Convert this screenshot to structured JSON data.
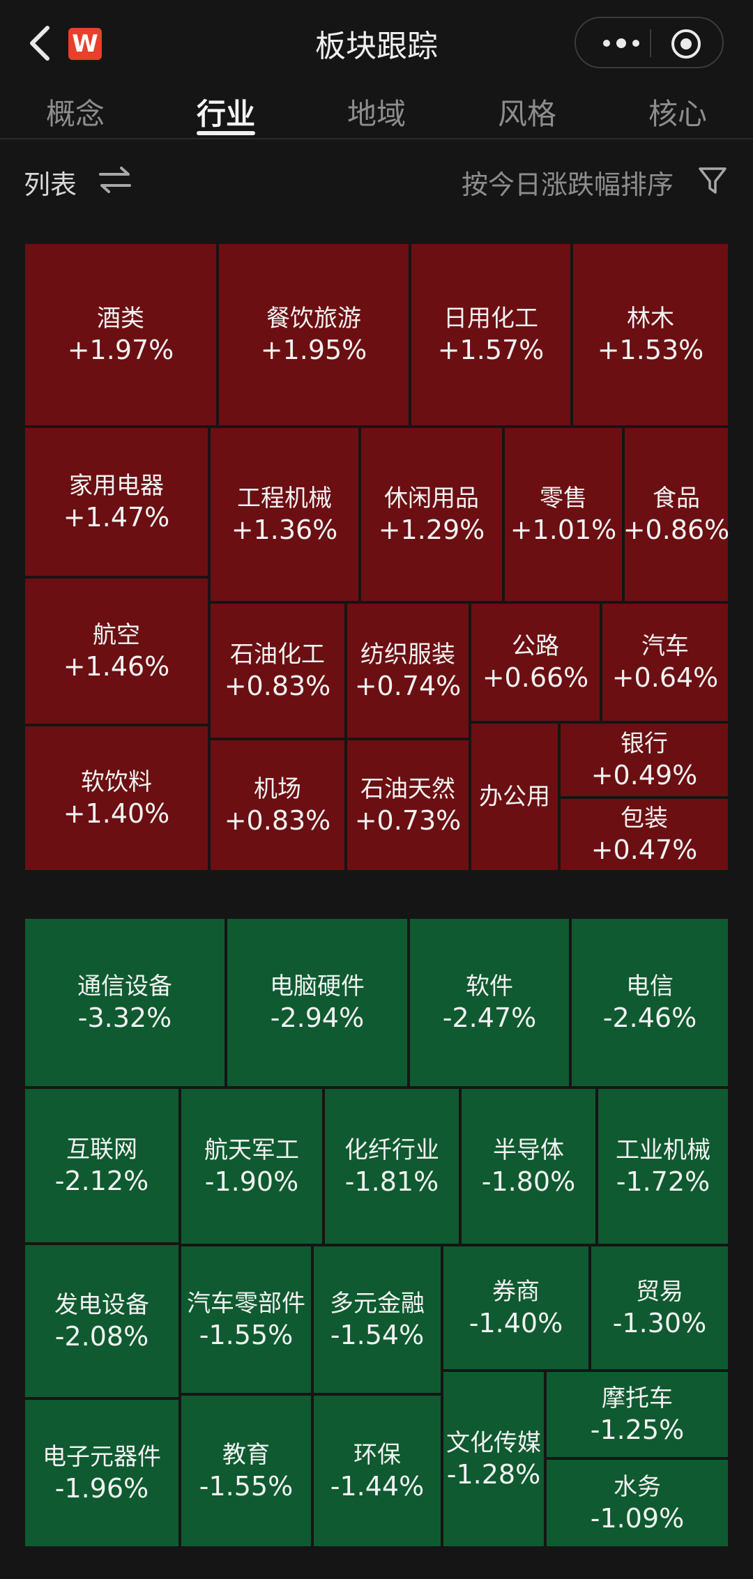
{
  "header": {
    "logo_text": "W",
    "title": "板块跟踪"
  },
  "tabs": [
    "概念",
    "行业",
    "地域",
    "风格",
    "核心"
  ],
  "active_tab": "行业",
  "toolbar": {
    "list_label": "列表",
    "sort_label": "按今日涨跌幅排序"
  },
  "colors": {
    "up": "#6b0f12",
    "down": "#0f5a30",
    "logo": "#e8402a"
  },
  "gainers": [
    {
      "name": "酒类",
      "change": "+1.97%"
    },
    {
      "name": "餐饮旅游",
      "change": "+1.95%"
    },
    {
      "name": "日用化工",
      "change": "+1.57%"
    },
    {
      "name": "林木",
      "change": "+1.53%"
    },
    {
      "name": "家用电器",
      "change": "+1.47%"
    },
    {
      "name": "工程机械",
      "change": "+1.36%"
    },
    {
      "name": "休闲用品",
      "change": "+1.29%"
    },
    {
      "name": "零售",
      "change": "+1.01%"
    },
    {
      "name": "食品",
      "change": "+0.86%"
    },
    {
      "name": "航空",
      "change": "+1.46%"
    },
    {
      "name": "石油化工",
      "change": "+0.83%"
    },
    {
      "name": "纺织服装",
      "change": "+0.74%"
    },
    {
      "name": "公路",
      "change": "+0.66%"
    },
    {
      "name": "汽车",
      "change": "+0.64%"
    },
    {
      "name": "软饮料",
      "change": "+1.40%"
    },
    {
      "name": "机场",
      "change": "+0.83%"
    },
    {
      "name": "石油天然",
      "change": "+0.73%"
    },
    {
      "name": "办公用",
      "change": ""
    },
    {
      "name": "银行",
      "change": "+0.49%"
    },
    {
      "name": "包装",
      "change": "+0.47%"
    }
  ],
  "losers": [
    {
      "name": "通信设备",
      "change": "-3.32%"
    },
    {
      "name": "电脑硬件",
      "change": "-2.94%"
    },
    {
      "name": "软件",
      "change": "-2.47%"
    },
    {
      "name": "电信",
      "change": "-2.46%"
    },
    {
      "name": "互联网",
      "change": "-2.12%"
    },
    {
      "name": "航天军工",
      "change": "-1.90%"
    },
    {
      "name": "化纤行业",
      "change": "-1.81%"
    },
    {
      "name": "半导体",
      "change": "-1.80%"
    },
    {
      "name": "工业机械",
      "change": "-1.72%"
    },
    {
      "name": "发电设备",
      "change": "-2.08%"
    },
    {
      "name": "汽车零部件",
      "change": "-1.55%"
    },
    {
      "name": "多元金融",
      "change": "-1.54%"
    },
    {
      "name": "券商",
      "change": "-1.40%"
    },
    {
      "name": "贸易",
      "change": "-1.30%"
    },
    {
      "name": "电子元器件",
      "change": "-1.96%"
    },
    {
      "name": "教育",
      "change": "-1.55%"
    },
    {
      "name": "环保",
      "change": "-1.44%"
    },
    {
      "name": "文化传媒",
      "change": "-1.28%"
    },
    {
      "name": "摩托车",
      "change": "-1.25%"
    },
    {
      "name": "水务",
      "change": "-1.09%"
    }
  ]
}
